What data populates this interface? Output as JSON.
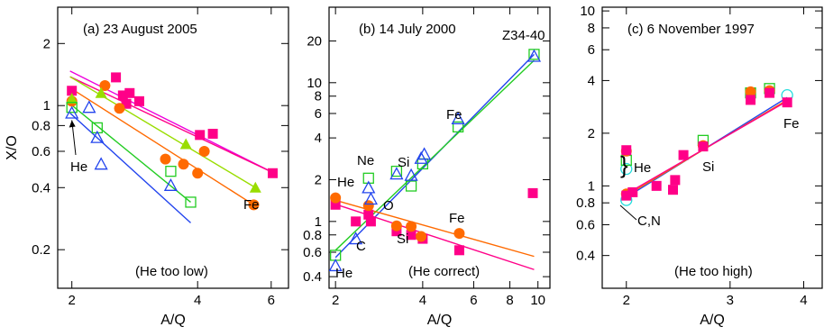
{
  "colors": {
    "He_hexagon": "#8b2be2",
    "red_circle": "#ff6a00",
    "yellowgreen_triangle": "#99dd00",
    "green_square": "#22cc22",
    "blue_triangle": "#2244ee",
    "pink_square": "#ff0088",
    "magenta_line": "#ee00dd",
    "cyan_circle": "#22dddd"
  },
  "chart_data": [
    {
      "type": "scatter",
      "title": "(a) 23 August 2005",
      "note": "(He too low)",
      "xlabel": "A/Q",
      "ylabel": "X/O",
      "xscale": "log",
      "yscale": "log",
      "xlim": [
        1.85,
        6.6
      ],
      "ylim": [
        0.13,
        3.0
      ],
      "xticks": [
        2,
        4,
        6
      ],
      "yticks": [
        0.2,
        0.4,
        0.6,
        0.8,
        1,
        2
      ],
      "labels": [
        "He",
        "Fe"
      ],
      "series": [
        {
          "marker": "square",
          "color": "#ff0088",
          "points": [
            [
              2.0,
              1.18
            ],
            [
              2.55,
              1.37
            ],
            [
              2.65,
              1.12
            ],
            [
              2.75,
              1.15
            ],
            [
              2.7,
              1.02
            ],
            [
              2.9,
              1.05
            ],
            [
              4.05,
              0.72
            ],
            [
              4.35,
              0.73
            ],
            [
              6.05,
              0.47
            ]
          ]
        },
        {
          "marker": "circle",
          "color": "#ff6a00",
          "points": [
            [
              2.0,
              1.05
            ],
            [
              2.4,
              1.25
            ],
            [
              2.6,
              0.97
            ],
            [
              3.35,
              0.55
            ],
            [
              3.7,
              0.52
            ],
            [
              4.0,
              0.47
            ],
            [
              4.15,
              0.6
            ],
            [
              5.45,
              0.33
            ]
          ]
        },
        {
          "marker": "triangle",
          "color": "#99dd00",
          "points": [
            [
              2.0,
              1.08
            ],
            [
              2.35,
              1.15
            ],
            [
              3.75,
              0.65
            ],
            [
              5.5,
              0.4
            ]
          ]
        },
        {
          "marker": "square_open",
          "color": "#22cc22",
          "points": [
            [
              2.0,
              0.98
            ],
            [
              2.3,
              0.78
            ],
            [
              3.45,
              0.48
            ],
            [
              3.85,
              0.34
            ]
          ]
        },
        {
          "marker": "triangle_open",
          "color": "#2244ee",
          "points": [
            [
              2.0,
              0.92
            ],
            [
              2.2,
              0.98
            ],
            [
              2.3,
              0.7
            ],
            [
              2.35,
              0.52
            ],
            [
              3.45,
              0.41
            ]
          ]
        }
      ],
      "fits": [
        {
          "color": "#ee00dd",
          "from": [
            1.98,
            1.47
          ],
          "to": [
            6.1,
            0.47
          ]
        },
        {
          "color": "#ff0088",
          "from": [
            1.98,
            1.38
          ],
          "to": [
            6.1,
            0.47
          ]
        },
        {
          "color": "#99dd00",
          "from": [
            1.98,
            1.38
          ],
          "to": [
            5.5,
            0.4
          ]
        },
        {
          "color": "#ff6a00",
          "from": [
            1.98,
            1.22
          ],
          "to": [
            5.45,
            0.33
          ]
        },
        {
          "color": "#22cc22",
          "from": [
            1.98,
            1.02
          ],
          "to": [
            3.85,
            0.34
          ]
        },
        {
          "color": "#2244ee",
          "from": [
            1.98,
            0.92
          ],
          "to": [
            3.85,
            0.27
          ]
        }
      ]
    },
    {
      "type": "scatter",
      "title": "(b) 14 July 2000",
      "note": "(He correct)",
      "xlabel": "A/Q",
      "xscale": "log",
      "yscale": "log",
      "xlim": [
        1.9,
        11.0
      ],
      "ylim": [
        0.33,
        35.0
      ],
      "xticks": [
        2,
        4,
        6,
        8,
        10
      ],
      "yticks": [
        0.4,
        0.6,
        0.8,
        1,
        2,
        4,
        6,
        8,
        10,
        20
      ],
      "labels": [
        "Z34-40",
        "Fe",
        "Ne",
        "He",
        "Si",
        "O",
        "C",
        "He",
        "Si",
        "Fe"
      ],
      "series": [
        {
          "marker": "square",
          "color": "#ff0088",
          "points": [
            [
              2.0,
              1.32
            ],
            [
              2.35,
              1.0
            ],
            [
              2.6,
              1.12
            ],
            [
              2.65,
              1.0
            ],
            [
              3.25,
              0.85
            ],
            [
              3.65,
              0.8
            ],
            [
              4.0,
              0.75
            ],
            [
              5.35,
              0.62
            ],
            [
              9.6,
              1.6
            ]
          ]
        },
        {
          "marker": "circle",
          "color": "#ff6a00",
          "points": [
            [
              2.0,
              1.48
            ],
            [
              2.6,
              1.3
            ],
            [
              3.25,
              0.93
            ],
            [
              3.65,
              0.92
            ],
            [
              3.95,
              0.78
            ],
            [
              5.35,
              0.82
            ]
          ]
        },
        {
          "marker": "square_open",
          "color": "#22cc22",
          "points": [
            [
              2.0,
              0.57
            ],
            [
              2.6,
              2.05
            ],
            [
              3.25,
              2.3
            ],
            [
              3.65,
              1.8
            ],
            [
              4.0,
              2.6
            ],
            [
              5.3,
              4.8
            ],
            [
              9.7,
              16.0
            ]
          ]
        },
        {
          "marker": "triangle_open",
          "color": "#2244ee",
          "points": [
            [
              2.0,
              0.48
            ],
            [
              2.35,
              0.75
            ],
            [
              2.6,
              1.75
            ],
            [
              2.65,
              1.45
            ],
            [
              3.25,
              2.2
            ],
            [
              3.65,
              2.15
            ],
            [
              3.95,
              2.85
            ],
            [
              4.05,
              3.05
            ],
            [
              5.3,
              5.5
            ],
            [
              9.7,
              15.5
            ]
          ]
        }
      ],
      "fits": [
        {
          "color": "#2244ee",
          "from": [
            2.0,
            0.55
          ],
          "to": [
            9.7,
            16.0
          ]
        },
        {
          "color": "#22cc22",
          "from": [
            2.0,
            0.62
          ],
          "to": [
            9.7,
            14.5
          ]
        },
        {
          "color": "#ff6a00",
          "from": [
            2.0,
            1.42
          ],
          "to": [
            9.7,
            0.56
          ]
        },
        {
          "color": "#ff0088",
          "from": [
            2.0,
            1.33
          ],
          "to": [
            9.7,
            0.45
          ]
        }
      ]
    },
    {
      "type": "scatter",
      "title": "(c) 6 November 1997",
      "note": "(He too high)",
      "xlabel": "A/Q",
      "xscale": "log",
      "yscale": "log",
      "xlim": [
        1.82,
        4.3
      ],
      "ylim": [
        0.26,
        10.5
      ],
      "xticks": [
        2,
        3,
        4
      ],
      "yticks": [
        0.4,
        0.6,
        0.8,
        1,
        2,
        4,
        6,
        8,
        10
      ],
      "labels": [
        "He",
        "C,N",
        "Si",
        "Fe"
      ],
      "series": [
        {
          "marker": "circle_open",
          "color": "#22dddd",
          "points": [
            [
              2.0,
              1.25
            ],
            [
              2.0,
              0.83
            ],
            [
              3.75,
              3.3
            ]
          ]
        },
        {
          "marker": "square_open",
          "color": "#22cc22",
          "points": [
            [
              2.0,
              1.4
            ],
            [
              2.7,
              1.82
            ],
            [
              3.25,
              3.4
            ],
            [
              3.5,
              3.6
            ]
          ]
        },
        {
          "marker": "circle",
          "color": "#ff6a00",
          "points": [
            [
              2.0,
              1.58
            ],
            [
              2.0,
              0.9
            ],
            [
              2.7,
              1.7
            ],
            [
              3.25,
              3.45
            ],
            [
              3.5,
              3.5
            ]
          ]
        },
        {
          "marker": "square",
          "color": "#ff0088",
          "points": [
            [
              2.0,
              1.6
            ],
            [
              2.0,
              0.88
            ],
            [
              2.05,
              0.92
            ],
            [
              2.25,
              1.0
            ],
            [
              2.4,
              0.95
            ],
            [
              2.42,
              1.08
            ],
            [
              2.5,
              1.5
            ],
            [
              2.7,
              1.68
            ],
            [
              3.25,
              3.1
            ],
            [
              3.5,
              3.4
            ],
            [
              3.75,
              3.0
            ]
          ]
        }
      ],
      "fits": [
        {
          "color": "#2244ee",
          "from": [
            2.0,
            0.86
          ],
          "to": [
            3.75,
            3.2
          ]
        },
        {
          "color": "#ff6a00",
          "from": [
            2.0,
            0.88
          ],
          "to": [
            3.75,
            3.1
          ]
        },
        {
          "color": "#ff0088",
          "from": [
            2.0,
            0.9
          ],
          "to": [
            3.75,
            3.05
          ]
        }
      ]
    }
  ]
}
